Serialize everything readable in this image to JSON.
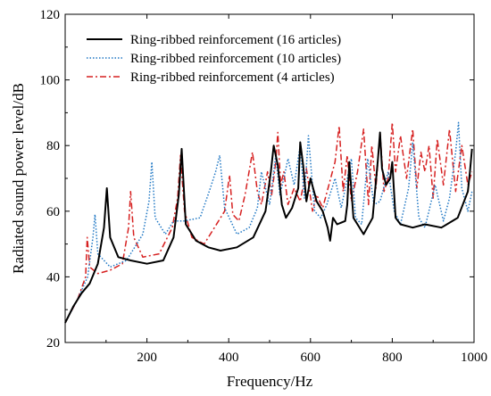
{
  "chart_data": {
    "type": "line",
    "xlabel": "Frequency/Hz",
    "ylabel": "Radiated sound power level/dB",
    "xlim": [
      0,
      1000
    ],
    "ylim": [
      20,
      120
    ],
    "xticks": [
      200,
      400,
      600,
      800,
      1000
    ],
    "yticks": [
      20,
      40,
      60,
      80,
      100,
      120
    ],
    "legend_position": "top-center",
    "grid": false,
    "series": [
      {
        "name": "Ring-ribbed reinforcement (16 articles)",
        "color": "#000000",
        "dash": "solid",
        "x": [
          0,
          20,
          40,
          60,
          80,
          95,
          102,
          110,
          130,
          160,
          200,
          240,
          265,
          278,
          285,
          295,
          320,
          350,
          380,
          420,
          460,
          490,
          503,
          510,
          520,
          530,
          540,
          555,
          570,
          575,
          582,
          590,
          600,
          615,
          630,
          642,
          648,
          655,
          665,
          685,
          690,
          695,
          705,
          730,
          752,
          765,
          770,
          775,
          785,
          795,
          800,
          808,
          820,
          850,
          880,
          920,
          960,
          985,
          990,
          995
        ],
        "y": [
          26,
          31,
          35,
          38,
          44,
          55,
          67,
          52,
          46,
          45,
          44,
          45,
          52,
          65,
          79,
          56,
          51,
          49,
          48,
          49,
          52,
          60,
          72,
          80,
          74,
          62,
          58,
          61,
          67,
          81,
          74,
          63,
          70,
          63,
          60,
          55,
          51,
          58,
          56,
          57,
          62,
          75,
          58,
          53,
          58,
          76,
          84,
          73,
          68,
          70,
          75,
          58,
          56,
          55,
          56,
          55,
          58,
          66,
          72,
          79
        ]
      },
      {
        "name": "Ring-ribbed reinforcement (10 articles)",
        "color": "#1f77c4",
        "dash": "dotted",
        "x": [
          0,
          30,
          55,
          68,
          73,
          80,
          110,
          150,
          190,
          205,
          212,
          220,
          245,
          265,
          290,
          330,
          355,
          368,
          378,
          390,
          420,
          450,
          470,
          480,
          500,
          515,
          525,
          535,
          545,
          560,
          575,
          585,
          595,
          610,
          625,
          640,
          660,
          675,
          700,
          710,
          725,
          740,
          755,
          770,
          790,
          805,
          820,
          840,
          850,
          865,
          880,
          905,
          925,
          940,
          955,
          962,
          970,
          985,
          995
        ],
        "y": [
          26,
          33,
          40,
          52,
          59,
          47,
          43,
          45,
          53,
          63,
          75,
          58,
          53,
          57,
          57,
          58,
          67,
          72,
          77,
          61,
          53,
          55,
          61,
          72,
          62,
          77,
          65,
          70,
          76,
          68,
          80,
          64,
          83,
          60,
          58,
          62,
          70,
          61,
          76,
          58,
          56,
          76,
          62,
          63,
          72,
          60,
          56,
          67,
          81,
          58,
          55,
          68,
          57,
          64,
          78,
          87,
          67,
          60,
          66
        ]
      },
      {
        "name": "Ring-ribbed reinforcement (4 articles)",
        "color": "#d62020",
        "dash": "dashdot",
        "x": [
          0,
          30,
          50,
          54,
          60,
          80,
          110,
          140,
          155,
          160,
          168,
          190,
          230,
          262,
          275,
          282,
          292,
          310,
          340,
          360,
          390,
          402,
          410,
          425,
          440,
          458,
          470,
          480,
          495,
          505,
          515,
          520,
          527,
          535,
          545,
          560,
          575,
          590,
          605,
          615,
          630,
          645,
          660,
          670,
          680,
          690,
          700,
          715,
          730,
          742,
          750,
          760,
          770,
          780,
          790,
          800,
          808,
          820,
          835,
          850,
          860,
          870,
          880,
          890,
          900,
          910,
          925,
          940,
          955,
          970,
          985,
          995
        ],
        "y": [
          26,
          33,
          40,
          52,
          43,
          41,
          42,
          44,
          55,
          66,
          52,
          46,
          47,
          55,
          64,
          77,
          60,
          52,
          50,
          54,
          60,
          71,
          59,
          57,
          65,
          78,
          66,
          62,
          72,
          65,
          75,
          84,
          68,
          72,
          62,
          67,
          63,
          73,
          60,
          65,
          61,
          68,
          75,
          86,
          66,
          77,
          63,
          72,
          85,
          62,
          80,
          67,
          84,
          66,
          70,
          87,
          72,
          83,
          70,
          85,
          67,
          78,
          72,
          80,
          64,
          82,
          68,
          85,
          66,
          80,
          68,
          72
        ]
      }
    ]
  }
}
